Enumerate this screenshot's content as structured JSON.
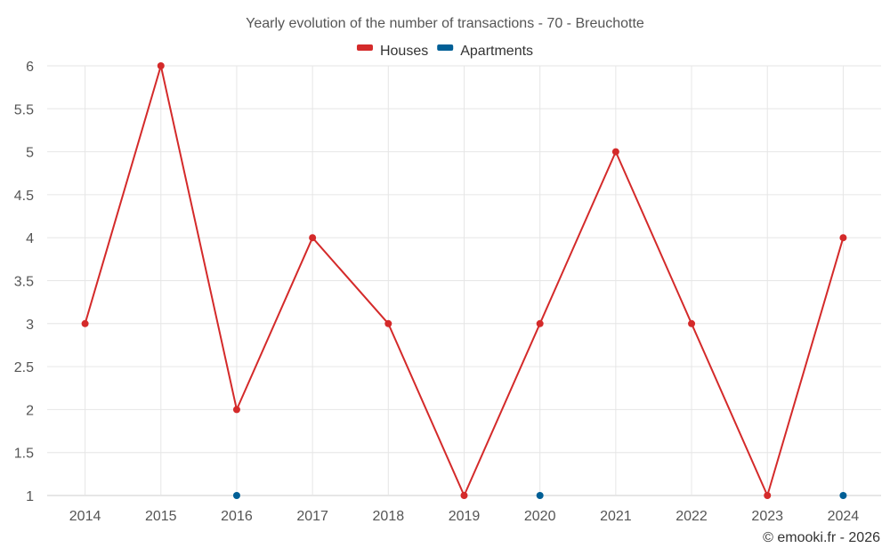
{
  "chart_data": {
    "type": "line",
    "title": "Yearly evolution of the number of transactions - 70 - Breuchotte",
    "categories": [
      "2014",
      "2015",
      "2016",
      "2017",
      "2018",
      "2019",
      "2020",
      "2021",
      "2022",
      "2023",
      "2024"
    ],
    "series": [
      {
        "name": "Houses",
        "color": "#d42a2a",
        "values": [
          3,
          6,
          2,
          4,
          3,
          1,
          3,
          5,
          3,
          1,
          4
        ],
        "connected": true
      },
      {
        "name": "Apartments",
        "color": "#005f96",
        "values": [
          null,
          null,
          1,
          null,
          null,
          null,
          1,
          null,
          null,
          null,
          1
        ],
        "connected": false
      }
    ],
    "ylim": [
      1,
      6
    ],
    "yticks": [
      1,
      1.5,
      2,
      2.5,
      3,
      3.5,
      4,
      4.5,
      5,
      5.5,
      6
    ],
    "xlabel": "",
    "ylabel": "",
    "grid": true,
    "legend_position": "top-center",
    "credit": "© emooki.fr - 2026"
  }
}
